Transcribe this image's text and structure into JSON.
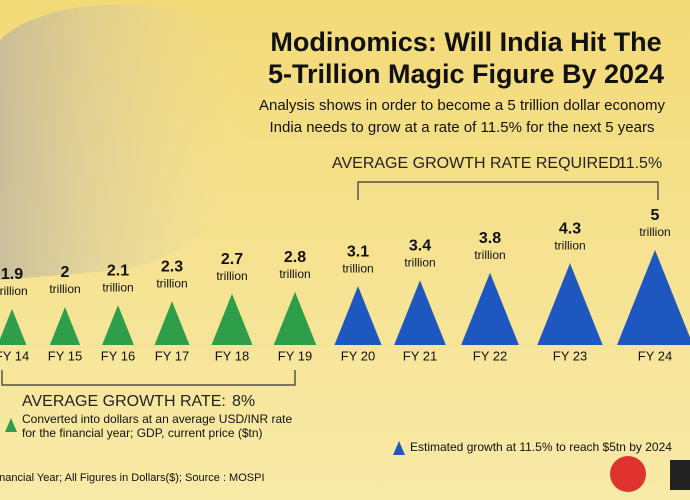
{
  "chart_data": {
    "type": "triangle",
    "title": [
      "Modinomics: Will India Hit The",
      "5-Trillion Magic Figure By 2024"
    ],
    "subtitle": [
      "Analysis shows in order to become a 5 trillion dollar economy",
      "India needs to grow at a rate of 11.5% for the next 5 years"
    ],
    "categories": [
      "FY 14",
      "FY 15",
      "FY 16",
      "FY 17",
      "FY 18",
      "FY 19",
      "FY 20",
      "FY 21",
      "FY 22",
      "FY 23",
      "FY 24"
    ],
    "unit_label": "trillion",
    "series": [
      {
        "name": "Converted into dollars at an average USD/INR rate for the financial year; GDP, current price ($tn)",
        "color": "#2e9e4a",
        "values": [
          1.9,
          2,
          2.1,
          2.3,
          2.7,
          2.8,
          null,
          null,
          null,
          null,
          null
        ]
      },
      {
        "name": "Estimated growth at 11.5% to reach $5tn by 2024",
        "color": "#1f57c0",
        "values": [
          null,
          null,
          null,
          null,
          null,
          null,
          3.1,
          3.4,
          3.8,
          4.3,
          5
        ]
      }
    ],
    "annotations": {
      "required_label": "AVERAGE GROWTH RATE REQUIRED:",
      "required_value": "11.5%",
      "average_label": "AVERAGE GROWTH RATE:",
      "average_value": "8%"
    },
    "footnote": "Financial Year; All Figures in Dollars($); Source : MOSPI"
  }
}
